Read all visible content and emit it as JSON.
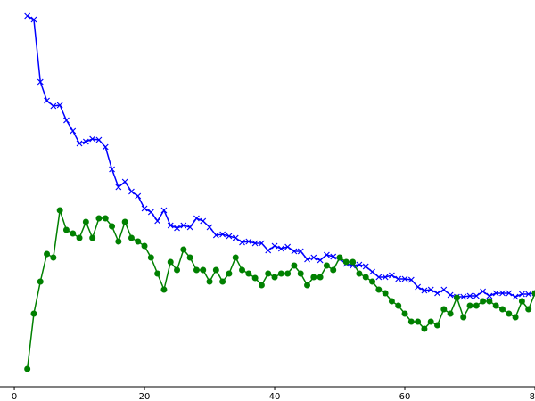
{
  "chart_data": {
    "type": "line",
    "x": [
      2,
      3,
      4,
      5,
      6,
      7,
      8,
      9,
      10,
      11,
      12,
      13,
      14,
      15,
      16,
      17,
      18,
      19,
      20,
      21,
      22,
      23,
      24,
      25,
      26,
      27,
      28,
      29,
      30,
      31,
      32,
      33,
      34,
      35,
      36,
      37,
      38,
      39,
      40,
      41,
      42,
      43,
      44,
      45,
      46,
      47,
      48,
      49,
      50,
      51,
      52,
      53,
      54,
      55,
      56,
      57,
      58,
      59,
      60,
      61,
      62,
      63,
      64,
      65,
      66,
      67,
      68,
      69,
      70,
      71,
      72,
      73,
      74,
      75,
      76,
      77,
      78,
      79,
      80
    ],
    "series": [
      {
        "color": "#0000ff",
        "marker": "x",
        "values": [
          416,
          412,
          342,
          321,
          315,
          316,
          299,
          287,
          273,
          275,
          278,
          277,
          269,
          244,
          224,
          230,
          219,
          214,
          200,
          196,
          186,
          198,
          181,
          178,
          181,
          179,
          189,
          186,
          179,
          170,
          171,
          169,
          167,
          162,
          163,
          161,
          161,
          153,
          158,
          155,
          157,
          152,
          152,
          143,
          145,
          142,
          148,
          146,
          143,
          138,
          136,
          137,
          135,
          129,
          123,
          123,
          125,
          121,
          121,
          120,
          112,
          108,
          109,
          105,
          109,
          103,
          101,
          101,
          102,
          102,
          107,
          102,
          105,
          105,
          105,
          101,
          104,
          104,
          105
        ]
      },
      {
        "color": "#008000",
        "marker": "o",
        "values": [
          20,
          82,
          118,
          149,
          145,
          198,
          176,
          172,
          167,
          185,
          167,
          189,
          189,
          180,
          163,
          185,
          167,
          163,
          158,
          145,
          127,
          109,
          140,
          131,
          154,
          145,
          131,
          131,
          118,
          131,
          118,
          127,
          145,
          131,
          127,
          122,
          114,
          127,
          123,
          127,
          127,
          136,
          127,
          114,
          123,
          123,
          136,
          131,
          145,
          140,
          140,
          127,
          123,
          118,
          109,
          105,
          96,
          91,
          82,
          73,
          73,
          65,
          73,
          69,
          87,
          82,
          100,
          78,
          91,
          91,
          96,
          96,
          91,
          87,
          82,
          78,
          96,
          87,
          105
        ]
      }
    ],
    "xlim": [
      -2.2,
      80
    ],
    "xticks": [
      0,
      20,
      40,
      60,
      80
    ],
    "ylim": [
      0,
      434
    ]
  }
}
